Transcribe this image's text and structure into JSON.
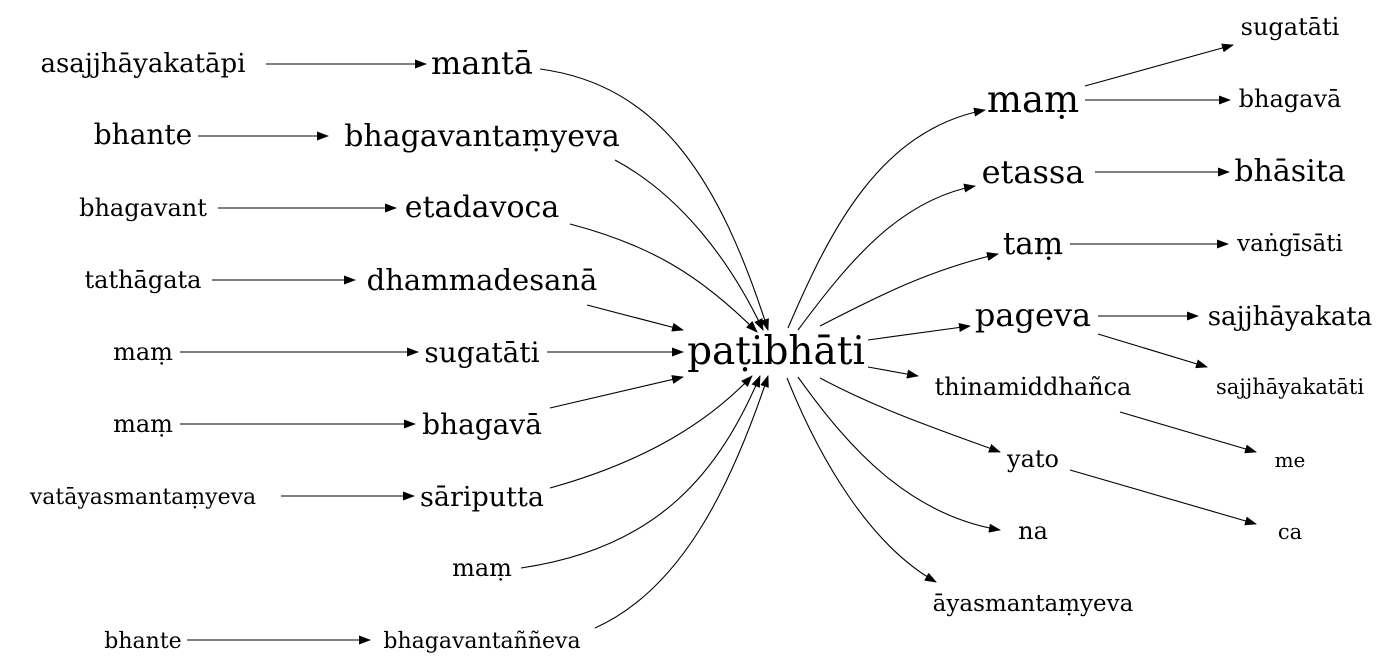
{
  "graph": {
    "center": "paṭibhāti",
    "left_column_sources": [
      "asajjhāyakatāpi",
      "bhante",
      "bhagavant",
      "tathāgata",
      "maṃ",
      "maṃ",
      "vatāyasmantaṃyeva",
      "bhante"
    ],
    "left_column_targets": [
      "mantā",
      "bhagavantaṃyeva",
      "etadavoca",
      "dhammadesanā",
      "sugatāti",
      "bhagavā",
      "sāriputta",
      "maṃ",
      "bhagavantaññeva"
    ],
    "right_column": [
      "maṃ",
      "etassa",
      "taṃ",
      "pageva",
      "thinamiddhañca",
      "yato",
      "na",
      "āyasmantaṃyeva"
    ],
    "far_right": [
      "sugatāti",
      "bhagavā",
      "bhāsita",
      "vaṅgīsāti",
      "sajjhāyakata",
      "sajjhāyakatāti",
      "me",
      "ca"
    ]
  }
}
